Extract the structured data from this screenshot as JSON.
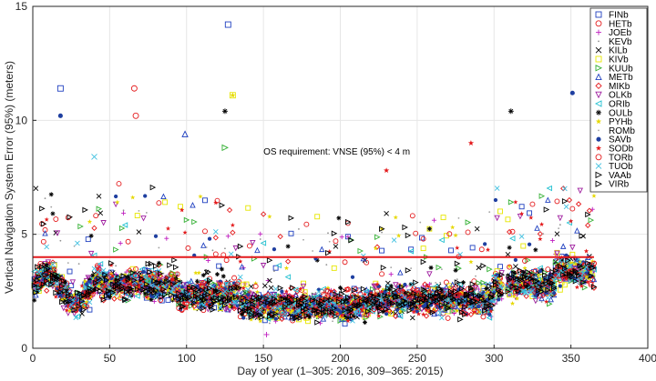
{
  "chart_data": {
    "type": "scatter",
    "title": "",
    "xlabel": "Day of year (1–305: 2016, 309–365: 2015)",
    "ylabel": "Vertical Navigation System Error (95%) (meters)",
    "xlim": [
      0,
      400
    ],
    "ylim": [
      0,
      15
    ],
    "xticks": [
      "0",
      "50",
      "100",
      "150",
      "200",
      "250",
      "300",
      "350",
      "400"
    ],
    "yticks": [
      "0",
      "5",
      "10",
      "15"
    ],
    "grid": true,
    "legend_position": "top-right",
    "annotation": "OS requirement: VNSE (95%) < 4 m",
    "requirement_line": {
      "y": 4,
      "color": "#e41a1c"
    },
    "series": [
      {
        "name": "FINb",
        "marker": "square",
        "color": "#2040c0",
        "highlights": [
          [
            18,
            11.4
          ],
          [
            127,
            14.2
          ]
        ]
      },
      {
        "name": "HETb",
        "marker": "circle",
        "color": "#e41a1c",
        "highlights": [
          [
            66,
            11.4
          ],
          [
            67,
            10.2
          ]
        ]
      },
      {
        "name": "JOEb",
        "marker": "plus",
        "color": "#c020c0",
        "highlights": [
          [
            152,
            0.6
          ]
        ]
      },
      {
        "name": "KEVb",
        "marker": "dot",
        "color": "#909090",
        "highlights": []
      },
      {
        "name": "KILb",
        "marker": "cross",
        "color": "#000000",
        "highlights": []
      },
      {
        "name": "KIVb",
        "marker": "square",
        "color": "#e6e600",
        "highlights": [
          [
            130,
            11.1
          ]
        ]
      },
      {
        "name": "KUUb",
        "marker": "triangle-right",
        "color": "#33b033",
        "highlights": [
          [
            125,
            8.8
          ]
        ]
      },
      {
        "name": "METb",
        "marker": "triangle-up",
        "color": "#2040c0",
        "highlights": [
          [
            99,
            9.4
          ]
        ]
      },
      {
        "name": "MIKb",
        "marker": "diamond",
        "color": "#e41a1c",
        "highlights": []
      },
      {
        "name": "OLKb",
        "marker": "triangle-down",
        "color": "#a020a0",
        "highlights": []
      },
      {
        "name": "ORIb",
        "marker": "triangle-left",
        "color": "#20c0d0",
        "highlights": []
      },
      {
        "name": "OULb",
        "marker": "asterisk",
        "color": "#000000",
        "highlights": [
          [
            125,
            10.4
          ],
          [
            311,
            10.4
          ]
        ]
      },
      {
        "name": "PYHb",
        "marker": "star",
        "color": "#e6d800",
        "highlights": [
          [
            130,
            11.1
          ]
        ]
      },
      {
        "name": "ROMb",
        "marker": "dot",
        "color": "#a0a0a0",
        "highlights": []
      },
      {
        "name": "SAVb",
        "marker": "filled-circle",
        "color": "#1f3fa0",
        "highlights": [
          [
            18,
            10.2
          ],
          [
            351,
            11.2
          ]
        ]
      },
      {
        "name": "SODb",
        "marker": "star",
        "color": "#e41a1c",
        "highlights": [
          [
            230,
            7.8
          ],
          [
            285,
            9.0
          ]
        ]
      },
      {
        "name": "TORb",
        "marker": "circle",
        "color": "#e41a1c",
        "highlights": []
      },
      {
        "name": "TUOb",
        "marker": "cross",
        "color": "#40c0e0",
        "highlights": [
          [
            40,
            8.4
          ]
        ]
      },
      {
        "name": "VAAb",
        "marker": "triangle-right",
        "color": "#000000",
        "highlights": []
      },
      {
        "name": "VIRb",
        "marker": "triangle-right",
        "color": "#000000",
        "highlights": []
      }
    ]
  }
}
